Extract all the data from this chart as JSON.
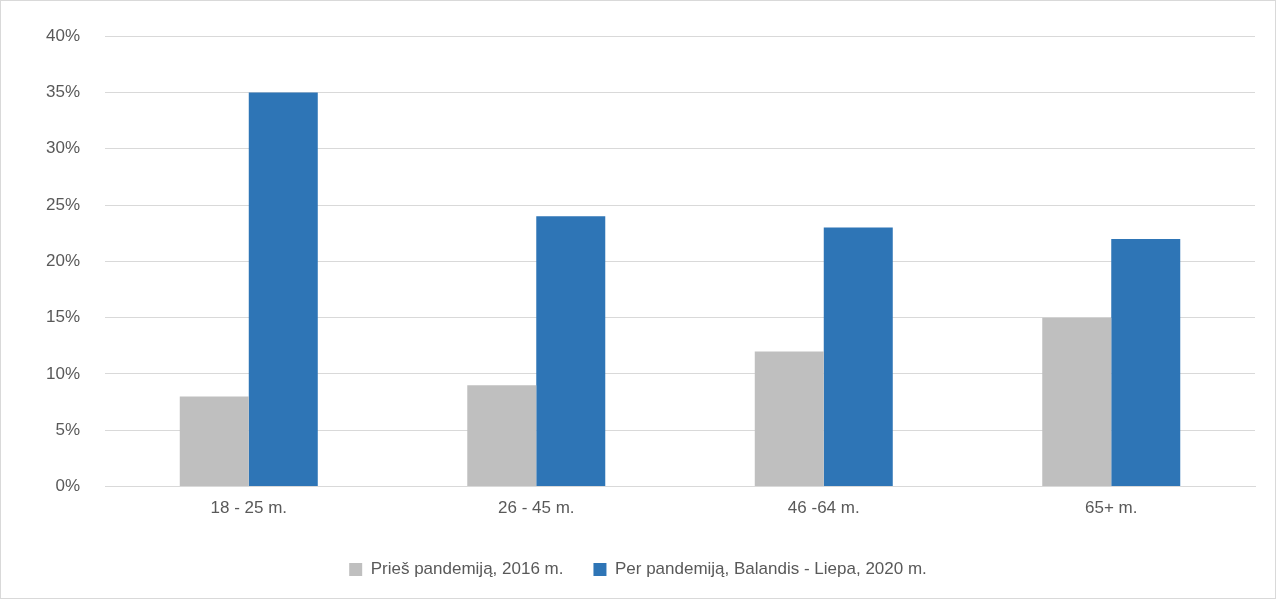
{
  "chart_data": {
    "type": "bar",
    "categories": [
      "18 - 25 m.",
      "26 - 45 m.",
      "46 -64 m.",
      "65+ m."
    ],
    "series": [
      {
        "name": "Prieš pandemiją, 2016 m.",
        "color": "#bfbfbf",
        "values": [
          8,
          9,
          12,
          15
        ]
      },
      {
        "name": "Per pandemiją, Balandis - Liepa, 2020 m.",
        "color": "#2e75b6",
        "values": [
          35,
          24,
          23,
          22
        ]
      }
    ],
    "ylim": [
      0,
      40
    ],
    "yticks": [
      {
        "value": 0,
        "label": "0%"
      },
      {
        "value": 5,
        "label": "5%"
      },
      {
        "value": 10,
        "label": "10%"
      },
      {
        "value": 15,
        "label": "15%"
      },
      {
        "value": 20,
        "label": "20%"
      },
      {
        "value": 25,
        "label": "25%"
      },
      {
        "value": 30,
        "label": "30%"
      },
      {
        "value": 35,
        "label": "35%"
      },
      {
        "value": 40,
        "label": "40%"
      }
    ],
    "grid": "y",
    "legend": "bottom"
  }
}
